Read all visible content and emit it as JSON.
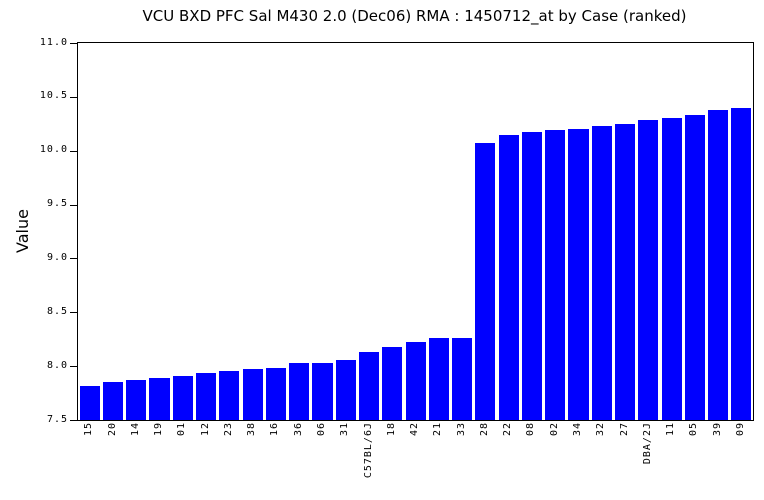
{
  "chart_data": {
    "type": "bar",
    "title": "VCU BXD PFC Sal M430 2.0 (Dec06) RMA : 1450712_at by Case (ranked)",
    "xlabel": "",
    "ylabel": "Value",
    "ylim": [
      7.5,
      11.0
    ],
    "ytick_labels": [
      "11.0",
      "10.5",
      "10.0",
      "9.5",
      "9.0",
      "8.5",
      "8.0",
      "7.5"
    ],
    "grid": false,
    "legend": false,
    "bar_color": "#0000ff",
    "axis_color": "#000000",
    "background_color": "#ffffff",
    "categories": [
      "15",
      "20",
      "14",
      "19",
      "01",
      "12",
      "23",
      "38",
      "16",
      "36",
      "06",
      "31",
      "C57BL/6J",
      "18",
      "42",
      "21",
      "33",
      "28",
      "22",
      "08",
      "02",
      "34",
      "32",
      "27",
      "DBA/2J",
      "11",
      "05",
      "39",
      "09"
    ],
    "values": [
      7.82,
      7.85,
      7.87,
      7.89,
      7.91,
      7.94,
      7.96,
      7.97,
      7.98,
      8.03,
      8.03,
      8.06,
      8.13,
      8.18,
      8.22,
      8.26,
      8.26,
      10.07,
      10.15,
      10.17,
      10.19,
      10.2,
      10.23,
      10.25,
      10.29,
      10.3,
      10.33,
      10.38,
      10.4
    ]
  }
}
